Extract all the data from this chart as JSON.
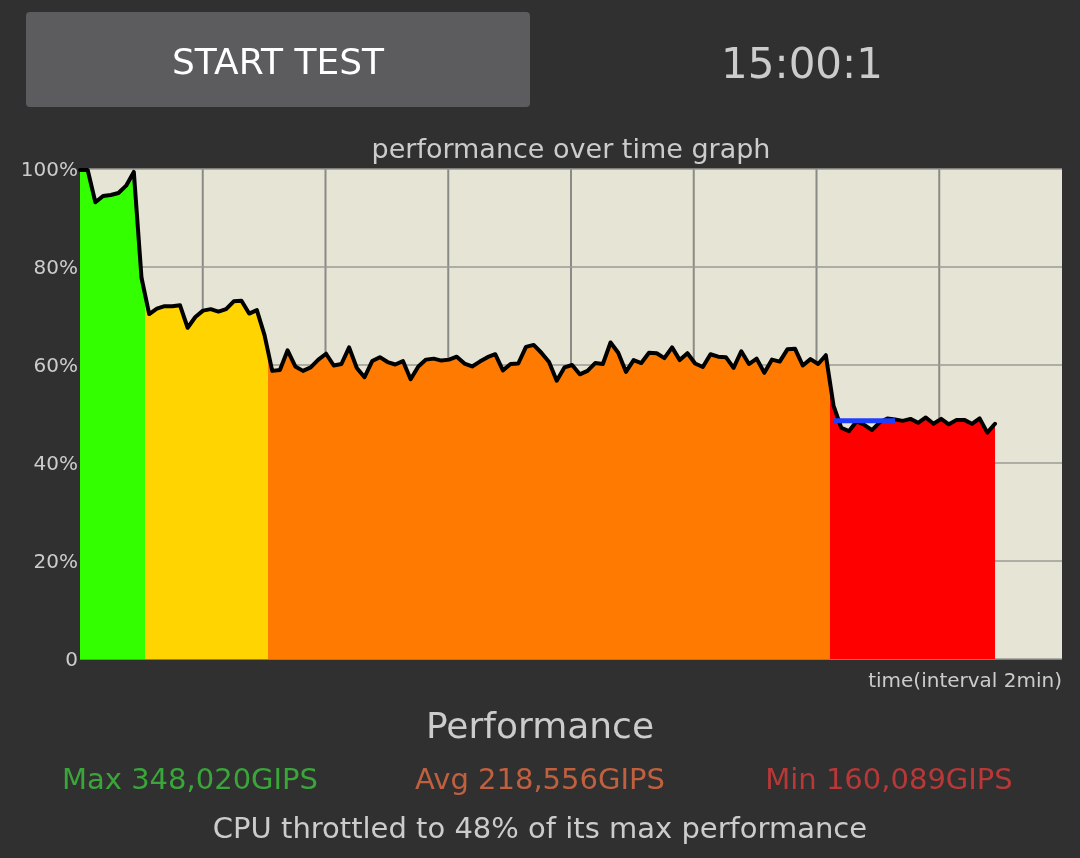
{
  "chart_data": {
    "type": "area",
    "title": "performance over time graph",
    "xlabel": "time(interval 2min)",
    "annotations": [
      "START TEST",
      "15:00:1",
      "Performance",
      "Max 348,020GIPS",
      "Avg 218,556GIPS",
      "Min 160,089GIPS",
      "CPU throttled to 48% of its max performance"
    ],
    "categories": [
      null,
      null,
      null,
      null,
      null,
      null,
      null,
      null,
      null,
      null,
      null,
      null,
      null,
      null,
      null,
      null,
      null,
      null,
      null,
      null,
      null,
      null,
      null,
      null,
      null,
      null,
      null,
      null,
      null,
      null,
      null,
      null,
      null,
      null,
      null,
      null,
      null,
      null,
      null,
      null,
      null,
      null,
      null,
      null,
      null,
      null,
      null,
      null,
      null,
      null,
      null,
      null,
      null,
      null,
      null,
      null,
      null,
      null,
      null,
      null,
      null,
      null,
      null,
      null,
      null,
      null,
      null,
      null,
      null,
      null,
      null,
      null,
      null,
      null,
      null,
      null,
      null,
      null,
      null,
      null,
      null,
      null,
      null,
      null,
      null,
      null,
      null,
      null,
      null,
      null,
      null,
      null,
      null,
      null,
      null,
      null,
      null,
      null,
      null,
      null,
      null,
      null,
      null,
      null,
      null,
      null,
      null,
      null,
      null,
      null,
      null,
      null,
      null,
      null,
      null,
      null,
      null,
      null,
      null,
      null
    ],
    "ylim": [
      0,
      100
    ],
    "yticks": [
      0,
      {
        "value": 20,
        "label": "20%"
      },
      {
        "value": 40,
        "label": "40%"
      },
      {
        "value": 60,
        "label": "60%"
      },
      {
        "value": 80,
        "label": "80%"
      },
      {
        "value": 100,
        "label": "100%"
      }
    ],
    "grid": true,
    "tick_labels": "y",
    "series": [
      {
        "color": "#000000",
        "values": [
          99.8,
          99.8,
          93.2,
          94.5,
          94.7,
          95.1,
          96.6,
          99.4,
          77.8,
          70.4,
          71.5,
          72,
          72,
          72.2,
          67.6,
          69.8,
          71.1,
          71.4,
          70.9,
          71.4,
          73,
          73.1,
          70.5,
          71.2,
          66.1,
          58.8,
          59,
          63,
          59.7,
          58.8,
          59.5,
          61.1,
          62.3,
          59.9,
          60.2,
          63.6,
          59.4,
          57.5,
          60.8,
          61.6,
          60.6,
          60.1,
          60.8,
          57.1,
          59.7,
          61.1,
          61.3,
          60.9,
          61.1,
          61.7,
          60.3,
          59.7,
          60.7,
          61.6,
          62.2,
          58.9,
          60.2,
          60.3,
          63.7,
          64.1,
          62.5,
          60.6,
          56.8,
          59.5,
          60,
          58.1,
          58.8,
          60.4,
          60.2,
          64.6,
          62.5,
          58.6,
          61,
          60.4,
          62.5,
          62.4,
          61.4,
          63.6,
          61,
          62.4,
          60.3,
          59.6,
          62.2,
          61.7,
          61.6,
          59.4,
          62.8,
          60.2,
          61.3,
          58.4,
          61.1,
          60.7,
          63.2,
          63.3,
          59.9,
          61.2,
          60.2,
          62,
          51.7,
          47.2,
          46.5,
          48.5,
          47.8,
          46.7,
          48.3,
          49.1,
          48.9,
          48.6,
          49,
          48.2,
          49.3,
          48,
          49,
          47.9,
          48.8,
          48.8,
          48,
          49.1,
          46.2,
          48
        ],
        "colors": [
          "#33ff00",
          "#33ff00",
          "#33ff00",
          "#33ff00",
          "#33ff00",
          "#33ff00",
          "#33ff00",
          "#33ff00",
          "#33ff00",
          "#ffd400",
          "#ffd400",
          "#ffd400",
          "#ffd400",
          "#ffd400",
          "#ffd400",
          "#ffd400",
          "#ffd400",
          "#ffd400",
          "#ffd400",
          "#ffd400",
          "#ffd400",
          "#ffd400",
          "#ffd400",
          "#ffd400",
          "#ffd400",
          "#ff7a00",
          "#ff7a00",
          "#ff7a00",
          "#ff7a00",
          "#ff7a00",
          "#ff7a00",
          "#ff7a00",
          "#ff7a00",
          "#ff7a00",
          "#ff7a00",
          "#ff7a00",
          "#ff7a00",
          "#ff7a00",
          "#ff7a00",
          "#ff7a00",
          "#ff7a00",
          "#ff7a00",
          "#ff7a00",
          "#ff7a00",
          "#ff7a00",
          "#ff7a00",
          "#ff7a00",
          "#ff7a00",
          "#ff7a00",
          "#ff7a00",
          "#ff7a00",
          "#ff7a00",
          "#ff7a00",
          "#ff7a00",
          "#ff7a00",
          "#ff7a00",
          "#ff7a00",
          "#ff7a00",
          "#ff7a00",
          "#ff7a00",
          "#ff7a00",
          "#ff7a00",
          "#ff7a00",
          "#ff7a00",
          "#ff7a00",
          "#ff7a00",
          "#ff7a00",
          "#ff7a00",
          "#ff7a00",
          "#ff7a00",
          "#ff7a00",
          "#ff7a00",
          "#ff7a00",
          "#ff7a00",
          "#ff7a00",
          "#ff7a00",
          "#ff7a00",
          "#ff7a00",
          "#ff7a00",
          "#ff7a00",
          "#ff7a00",
          "#ff7a00",
          "#ff7a00",
          "#ff7a00",
          "#ff7a00",
          "#ff7a00",
          "#ff7a00",
          "#ff7a00",
          "#ff7a00",
          "#ff7a00",
          "#ff7a00",
          "#ff7a00",
          "#ff7a00",
          "#ff7a00",
          "#ff7a00",
          "#ff7a00",
          "#ff7a00",
          "#ff7a00",
          "#ff0000",
          "#ff0000",
          "#ff0000",
          "#ff0000",
          "#ff0000",
          "#ff0000",
          "#ff0000",
          "#ff0000",
          "#ff0000",
          "#ff0000",
          "#ff0000",
          "#ff0000",
          "#ff0000",
          "#ff0000",
          "#ff0000",
          "#ff0000",
          "#ff0000",
          "#ff0000",
          "#ff0000",
          "#ff0000",
          "#ff0000",
          "#ff0000"
        ]
      },
      {
        "type": "line",
        "color": "#1f3fff",
        "values": [
          null,
          null,
          null,
          null,
          null,
          null,
          null,
          null,
          null,
          null,
          null,
          null,
          null,
          null,
          null,
          null,
          null,
          null,
          null,
          null,
          null,
          null,
          null,
          null,
          null,
          null,
          null,
          null,
          null,
          null,
          null,
          null,
          null,
          null,
          null,
          null,
          null,
          null,
          null,
          null,
          null,
          null,
          null,
          null,
          null,
          null,
          null,
          null,
          null,
          null,
          null,
          null,
          null,
          null,
          null,
          null,
          null,
          null,
          null,
          null,
          null,
          null,
          null,
          null,
          null,
          null,
          null,
          null,
          null,
          null,
          null,
          null,
          null,
          null,
          null,
          null,
          null,
          null,
          null,
          null,
          null,
          null,
          null,
          null,
          null,
          null,
          null,
          null,
          null,
          null,
          null,
          null,
          null,
          null,
          null,
          null,
          null,
          null,
          48.6,
          48.6,
          48.6,
          48.6,
          48.6,
          48.6,
          48.6,
          48.6,
          48.6,
          null,
          null,
          null,
          null,
          null,
          null,
          null,
          null,
          null,
          null,
          null,
          null,
          null
        ]
      }
    ]
  }
}
